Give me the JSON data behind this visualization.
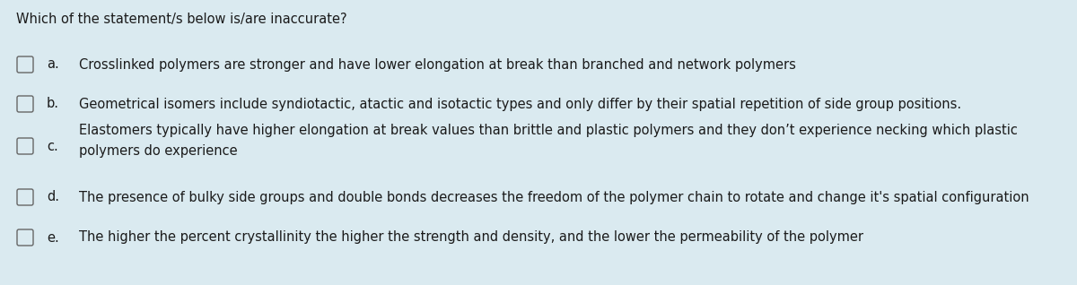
{
  "background_color": "#daeaf0",
  "title": "Which of the statement/s below is/are inaccurate?",
  "title_fontsize": 10.5,
  "text_color": "#1a1a1a",
  "options": [
    {
      "label": "a.",
      "text": "Crosslinked polymers are stronger and have lower elongation at break than branched and network polymers",
      "multiline": false
    },
    {
      "label": "b.",
      "text": "Geometrical isomers include syndiotactic, atactic and isotactic types and only differ by their spatial repetition of side group positions.",
      "multiline": false
    },
    {
      "label": "c.",
      "text": "Elastomers typically have higher elongation at break values than brittle and plastic polymers and they don’t experience necking which plastic\npolymers do experience",
      "multiline": true
    },
    {
      "label": "d.",
      "text": "The presence of bulky side groups and double bonds decreases the freedom of the polymer chain to rotate and change it's spatial configuration",
      "multiline": false
    },
    {
      "label": "e.",
      "text": "The higher the percent crystallinity the higher the strength and density, and the lower the permeability of the polymer",
      "multiline": false
    }
  ],
  "circle_color": "#666666",
  "text_fontsize": 10.5,
  "label_fontsize": 10.5
}
